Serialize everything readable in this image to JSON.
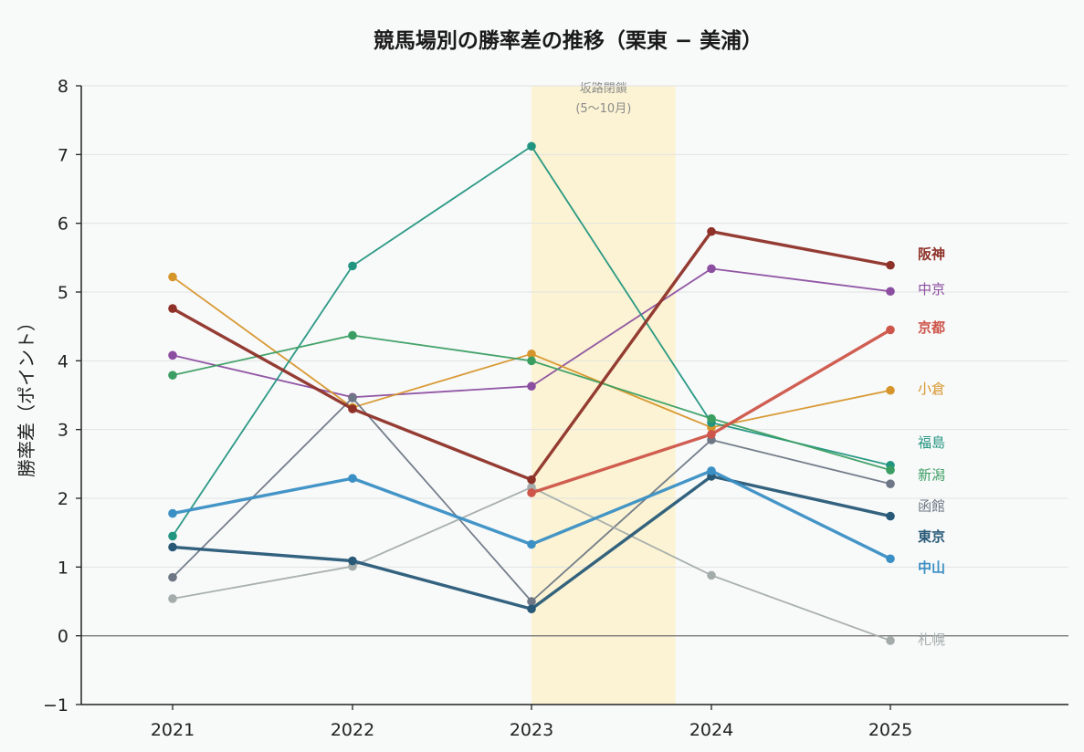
{
  "chart_data": {
    "type": "line",
    "title": "競馬場別の勝率差の推移（栗東 − 美浦）",
    "ylabel": "勝率差（ポイント）",
    "xlabel": "",
    "categories": [
      "2021",
      "2022",
      "2023",
      "2024",
      "2025"
    ],
    "yticks": [
      "−1",
      "0",
      "1",
      "2",
      "3",
      "4",
      "5",
      "6",
      "7",
      "8"
    ],
    "ylim": [
      -1,
      8
    ],
    "grid": "horizontal",
    "zero_line": true,
    "highlight_band": {
      "from": "2023",
      "to": "2023-10",
      "color": "#fbf3d3",
      "label_line1": "坂路閉鎖",
      "label_line2": "(5〜10月)"
    },
    "series": [
      {
        "name": "阪神",
        "color": "#8e3128",
        "bold": true,
        "values": [
          4.76,
          3.3,
          2.27,
          5.88,
          5.39
        ]
      },
      {
        "name": "中京",
        "color": "#8b4ea0",
        "bold": false,
        "values": [
          4.08,
          3.47,
          3.63,
          5.34,
          5.01
        ]
      },
      {
        "name": "京都",
        "color": "#cd5549",
        "bold": true,
        "values": [
          null,
          null,
          2.08,
          2.93,
          4.45
        ]
      },
      {
        "name": "小倉",
        "color": "#d6952a",
        "bold": false,
        "values": [
          5.22,
          3.32,
          4.1,
          3.03,
          3.57
        ]
      },
      {
        "name": "福島",
        "color": "#219580",
        "bold": false,
        "values": [
          1.45,
          5.38,
          7.12,
          3.1,
          2.48
        ]
      },
      {
        "name": "新潟",
        "color": "#3a9e62",
        "bold": false,
        "values": [
          3.79,
          4.37,
          4.0,
          3.16,
          2.41
        ]
      },
      {
        "name": "函館",
        "color": "#6d7785",
        "bold": false,
        "values": [
          0.85,
          3.46,
          0.5,
          2.85,
          2.21
        ]
      },
      {
        "name": "東京",
        "color": "#285a78",
        "bold": true,
        "values": [
          1.29,
          1.09,
          0.39,
          2.32,
          1.74
        ]
      },
      {
        "name": "中山",
        "color": "#3a8fc4",
        "bold": true,
        "values": [
          1.78,
          2.29,
          1.33,
          2.4,
          1.12
        ]
      },
      {
        "name": "札幌",
        "color": "#a3acab",
        "bold": false,
        "values": [
          0.54,
          1.01,
          2.16,
          0.88,
          -0.07
        ]
      }
    ],
    "end_labels": [
      {
        "name": "阪神",
        "y": 5.55
      },
      {
        "name": "中京",
        "y": 5.04
      },
      {
        "name": "京都",
        "y": 4.48
      },
      {
        "name": "小倉",
        "y": 3.59
      },
      {
        "name": "福島",
        "y": 2.81
      },
      {
        "name": "新潟",
        "y": 2.34
      },
      {
        "name": "函館",
        "y": 1.89
      },
      {
        "name": "東京",
        "y": 1.44
      },
      {
        "name": "中山",
        "y": 0.99
      },
      {
        "name": "札幌",
        "y": -0.06
      }
    ]
  }
}
